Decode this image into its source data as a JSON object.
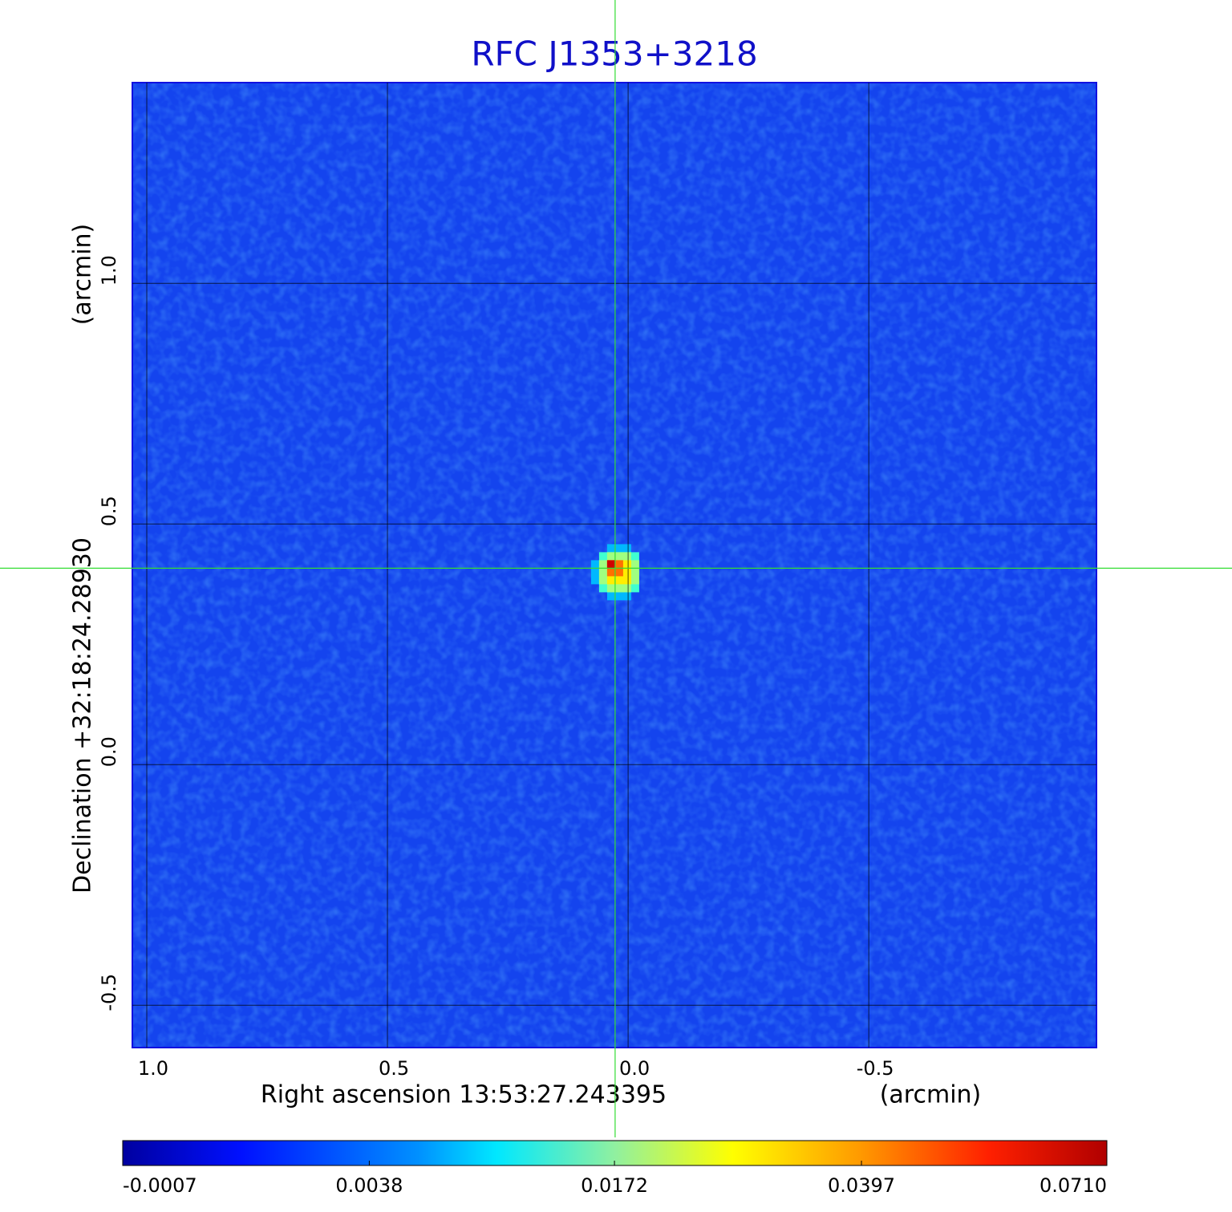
{
  "chart_data": {
    "type": "image",
    "title": "RFC J1353+3218",
    "xlabel": "Right ascension  13:53:27.243395",
    "xunit": "(arcmin)",
    "ylabel": "Declination  +32:18:24.28930",
    "yunit": "(arcmin)",
    "xlim": [
      1.03,
      -0.973
    ],
    "ylim": [
      -0.588,
      1.417
    ],
    "xticks": [
      {
        "value": 1,
        "label": "1.0"
      },
      {
        "value": 0.5,
        "label": "0.5"
      },
      {
        "value": 0,
        "label": "0.0"
      },
      {
        "value": -0.5,
        "label": "-0.5"
      }
    ],
    "yticks": [
      {
        "value": -0.5,
        "label": "-0.5"
      },
      {
        "value": 0,
        "label": "0.0"
      },
      {
        "value": 0.5,
        "label": "0.5"
      },
      {
        "value": 1,
        "label": "1.0"
      }
    ],
    "grid": true,
    "crosshair": {
      "x": 0.027,
      "y": 0.408,
      "color": "#33dd33"
    },
    "colorbar": {
      "lim": [
        -0.0007,
        0.071
      ],
      "scale": "sqrt",
      "ticks": [
        -0.0007,
        0.0038,
        0.0172,
        0.0397,
        {
          "value": 0.071,
          "label": "0.0710"
        }
      ]
    }
  }
}
